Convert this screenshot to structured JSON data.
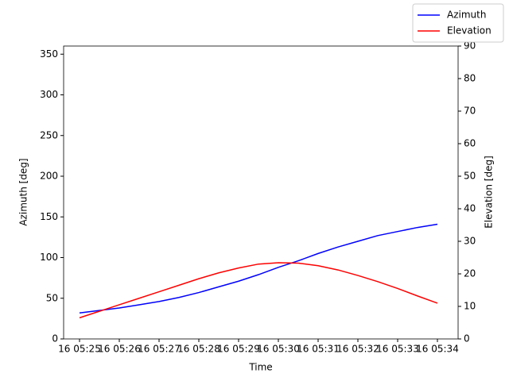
{
  "chart_data": {
    "type": "line",
    "x_label": "Time",
    "y_label": "Azimuth [deg]",
    "y2_label": "Elevation [deg]",
    "x": [
      0,
      0.5,
      1,
      1.5,
      2,
      2.5,
      3,
      3.5,
      4,
      4.5,
      5,
      5.5,
      6,
      6.5,
      7,
      7.5,
      8,
      8.5,
      9
    ],
    "xlim": [
      -0.4,
      9.52
    ],
    "xticks": [
      {
        "value": 0,
        "label": "16 05:25"
      },
      {
        "value": 1,
        "label": "16 05:26"
      },
      {
        "value": 2,
        "label": "16 05:27"
      },
      {
        "value": 3,
        "label": "16 05:28"
      },
      {
        "value": 4,
        "label": "16 05:29"
      },
      {
        "value": 5,
        "label": "16 05:30"
      },
      {
        "value": 6,
        "label": "16 05:31"
      },
      {
        "value": 7,
        "label": "16 05:32"
      },
      {
        "value": 8,
        "label": "16 05:33"
      },
      {
        "value": 9,
        "label": "16 05:34"
      }
    ],
    "ylim": [
      0,
      360
    ],
    "yticks": [
      0,
      50,
      100,
      150,
      200,
      250,
      300,
      350
    ],
    "y2lim": [
      0,
      90
    ],
    "y2ticks": [
      0,
      10,
      20,
      30,
      40,
      50,
      60,
      70,
      80,
      90
    ],
    "legend": "upper right",
    "series": [
      {
        "name": "Azimuth",
        "color": "#0000ff",
        "values": [
          32,
          35,
          38,
          42,
          46,
          51,
          57,
          64,
          71,
          79,
          88,
          96,
          105,
          113,
          120,
          127,
          132,
          137,
          141
        ]
      },
      {
        "name": "Elevation",
        "color": "#ff0000",
        "axis": "y2",
        "values": [
          6.5,
          8.5,
          10.5,
          12.5,
          14.5,
          16.5,
          18.5,
          20.3,
          21.8,
          23,
          23.4,
          23.3,
          22.5,
          21.2,
          19.5,
          17.6,
          15.5,
          13.2,
          11
        ]
      }
    ]
  }
}
